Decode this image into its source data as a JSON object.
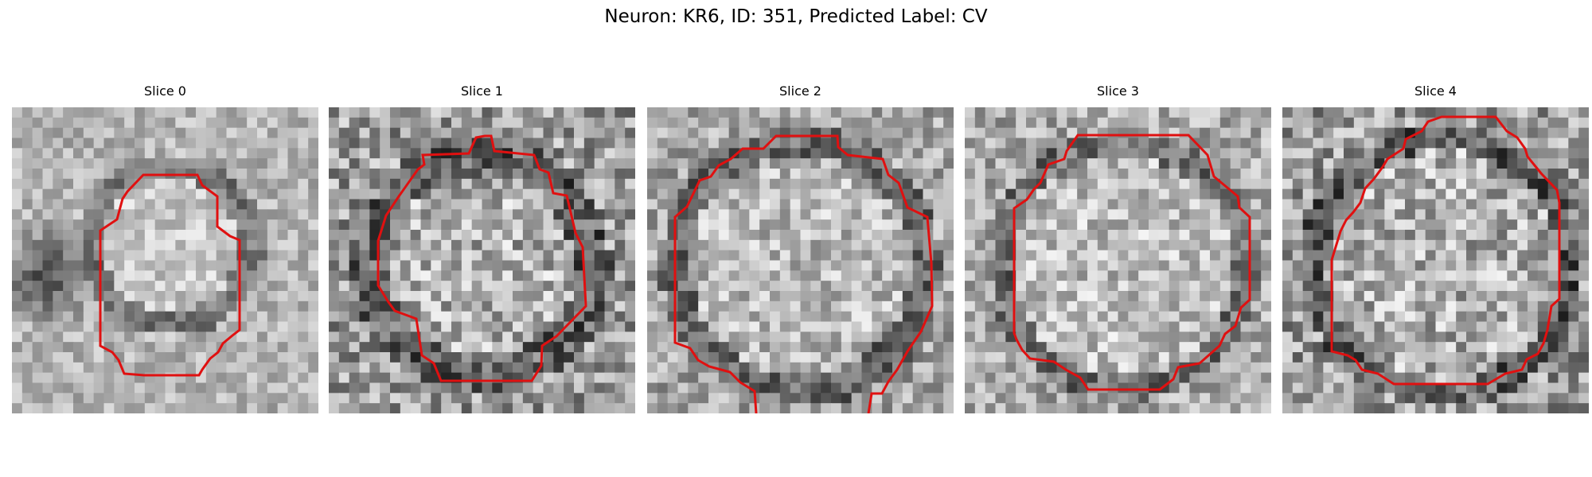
{
  "figure": {
    "title": "Neuron: KR6, ID: 351, Predicted Label: CV",
    "contour_color": "#e01010",
    "panels": [
      {
        "title": "Slice 0"
      },
      {
        "title": "Slice 1"
      },
      {
        "title": "Slice 2"
      },
      {
        "title": "Slice 3"
      },
      {
        "title": "Slice 4"
      }
    ]
  }
}
